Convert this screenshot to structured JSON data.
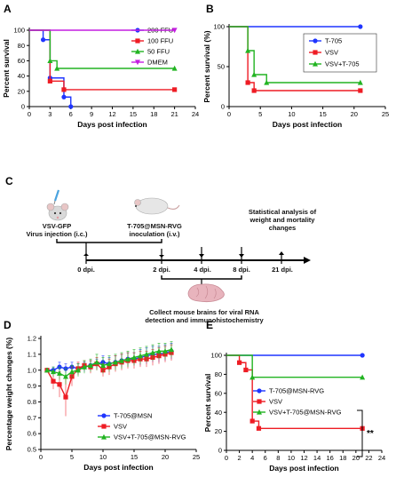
{
  "figure": {
    "panel_letters": [
      "A",
      "B",
      "C",
      "D",
      "E"
    ]
  },
  "colors": {
    "blue": "#1f35ff",
    "red": "#ee1c24",
    "green": "#22b422",
    "magenta": "#c41fe0",
    "error": "#999999"
  },
  "chart_data": [
    {
      "panel": "A",
      "type": "line",
      "step": true,
      "xlabel": "Days post infection",
      "ylabel": "Percent survival",
      "xlim": [
        0,
        24
      ],
      "ylim": [
        0,
        100
      ],
      "xticks": [
        0,
        3,
        6,
        9,
        12,
        15,
        18,
        21,
        24
      ],
      "yticks": [
        0,
        20,
        40,
        60,
        80,
        100
      ],
      "legend_position": "top-right",
      "series": [
        {
          "name": "200 FFU",
          "color": "blue",
          "marker": "circle",
          "x": [
            0,
            2,
            3,
            5,
            6
          ],
          "y": [
            100,
            87.5,
            37.5,
            12.5,
            0
          ]
        },
        {
          "name": "100 FFU",
          "color": "red",
          "marker": "square",
          "x": [
            0,
            3,
            5,
            21
          ],
          "y": [
            100,
            33.3,
            22.2,
            22.2
          ]
        },
        {
          "name": "50 FFU",
          "color": "green",
          "marker": "triangle",
          "x": [
            0,
            3,
            4,
            21
          ],
          "y": [
            100,
            60,
            50,
            50
          ]
        },
        {
          "name": "DMEM",
          "color": "magenta",
          "marker": "triangle-down",
          "x": [
            0,
            21
          ],
          "y": [
            100,
            100
          ]
        }
      ]
    },
    {
      "panel": "B",
      "type": "line",
      "step": true,
      "xlabel": "Days post infection",
      "ylabel": "Percent survival (%)",
      "xlim": [
        0,
        25
      ],
      "ylim": [
        0,
        100
      ],
      "xticks": [
        0,
        5,
        10,
        15,
        20,
        25
      ],
      "yticks": [
        0,
        50,
        100
      ],
      "legend_position": "top-right",
      "series": [
        {
          "name": "T-705",
          "color": "blue",
          "marker": "circle",
          "x": [
            0,
            21
          ],
          "y": [
            100,
            100
          ]
        },
        {
          "name": "VSV",
          "color": "red",
          "marker": "square",
          "x": [
            0,
            3,
            4,
            21
          ],
          "y": [
            100,
            30,
            20,
            20
          ]
        },
        {
          "name": "VSV+T-705",
          "color": "green",
          "marker": "triangle",
          "x": [
            0,
            3,
            4,
            6,
            21
          ],
          "y": [
            100,
            70,
            40,
            30,
            30
          ]
        }
      ]
    },
    {
      "panel": "D",
      "type": "line",
      "step": false,
      "xlabel": "Days post infection",
      "ylabel": "Percentage weight changes (%)",
      "xlim": [
        0,
        25
      ],
      "ylim": [
        0.5,
        1.2
      ],
      "xticks": [
        0,
        5,
        10,
        15,
        20,
        25
      ],
      "yticks": [
        0.5,
        0.6,
        0.7,
        0.8,
        0.9,
        1.0,
        1.1,
        1.2
      ],
      "legend_position": "bottom-center",
      "series": [
        {
          "name": "T-705@MSN",
          "color": "blue",
          "marker": "circle",
          "x": [
            1,
            2,
            3,
            4,
            5,
            6,
            7,
            8,
            9,
            10,
            11,
            12,
            13,
            14,
            15,
            16,
            17,
            18,
            19,
            20,
            21
          ],
          "y": [
            1.0,
            1.0,
            1.02,
            1.01,
            1.02,
            1.01,
            1.02,
            1.03,
            1.04,
            1.05,
            1.04,
            1.05,
            1.06,
            1.07,
            1.07,
            1.08,
            1.09,
            1.1,
            1.1,
            1.11,
            1.12
          ],
          "err": [
            0.01,
            0.02,
            0.03,
            0.03,
            0.03,
            0.03,
            0.03,
            0.03,
            0.03,
            0.04,
            0.04,
            0.04,
            0.04,
            0.04,
            0.04,
            0.05,
            0.05,
            0.05,
            0.05,
            0.05,
            0.05
          ]
        },
        {
          "name": "VSV",
          "color": "red",
          "marker": "square",
          "x": [
            1,
            2,
            3,
            4,
            5,
            6,
            7,
            8,
            9,
            10,
            11,
            12,
            13,
            14,
            15,
            16,
            17,
            18,
            19,
            20,
            21
          ],
          "y": [
            1.0,
            0.93,
            0.91,
            0.83,
            0.96,
            1.01,
            1.03,
            1.02,
            1.04,
            1.0,
            1.02,
            1.04,
            1.05,
            1.06,
            1.06,
            1.07,
            1.07,
            1.08,
            1.09,
            1.1,
            1.11
          ],
          "err": [
            0.01,
            0.05,
            0.08,
            0.12,
            0.06,
            0.04,
            0.03,
            0.04,
            0.04,
            0.04,
            0.05,
            0.05,
            0.05,
            0.05,
            0.05,
            0.05,
            0.05,
            0.05,
            0.05,
            0.05,
            0.05
          ]
        },
        {
          "name": "VSV+T-705@MSN-RVG",
          "color": "green",
          "marker": "triangle",
          "x": [
            1,
            2,
            3,
            4,
            5,
            6,
            7,
            8,
            9,
            10,
            11,
            12,
            13,
            14,
            15,
            16,
            17,
            18,
            19,
            20,
            21
          ],
          "y": [
            1.0,
            0.99,
            0.98,
            0.96,
            0.99,
            1.0,
            1.02,
            1.03,
            1.05,
            1.03,
            1.04,
            1.05,
            1.06,
            1.07,
            1.08,
            1.09,
            1.1,
            1.11,
            1.12,
            1.12,
            1.13
          ],
          "err": [
            0.01,
            0.03,
            0.04,
            0.05,
            0.04,
            0.04,
            0.04,
            0.04,
            0.05,
            0.05,
            0.05,
            0.05,
            0.05,
            0.05,
            0.05,
            0.05,
            0.05,
            0.05,
            0.05,
            0.05,
            0.05
          ]
        }
      ]
    },
    {
      "panel": "E",
      "type": "line",
      "step": true,
      "xlabel": "Days post infection",
      "ylabel": "Percent survival",
      "xlim": [
        0,
        24
      ],
      "ylim": [
        0,
        100
      ],
      "xticks": [
        0,
        2,
        4,
        6,
        8,
        10,
        12,
        14,
        16,
        18,
        20,
        22,
        24
      ],
      "yticks": [
        0,
        20,
        40,
        60,
        80,
        100
      ],
      "legend_position": "middle",
      "annotation": "**",
      "series": [
        {
          "name": "T-705@MSN-RVG",
          "color": "blue",
          "marker": "circle",
          "x": [
            0,
            21
          ],
          "y": [
            100,
            100
          ]
        },
        {
          "name": "VSV",
          "color": "red",
          "marker": "square",
          "x": [
            0,
            2,
            3,
            4,
            5,
            21
          ],
          "y": [
            100,
            92.3,
            84.6,
            30.8,
            23.1,
            23.1
          ]
        },
        {
          "name": "VSV+T-705@MSN-RVG",
          "color": "green",
          "marker": "triangle",
          "x": [
            0,
            4,
            21
          ],
          "y": [
            100,
            76.9,
            76.9
          ]
        }
      ]
    }
  ],
  "schematic": {
    "label_vsv_line1": "VSV-GFP",
    "label_vsv_line2": "Virus injection (i.c.)",
    "label_t705_line1": "T-705@MSN-RVG",
    "label_t705_line2": "inoculation (i.v.)",
    "label_stats_line1": "Statistical analysis of",
    "label_stats_line2": "weight and mortality",
    "label_stats_line3": "changes",
    "timepoints": [
      "0 dpi.",
      "2 dpi.",
      "4 dpi.",
      "8 dpi.",
      "21 dpi."
    ],
    "label_collect_line1": "Collect mouse brains for viral RNA",
    "label_collect_line2": "detection and immunohistochemistry",
    "mouse_icon": "mouse-icon",
    "brain_icon": "brain-icon"
  }
}
